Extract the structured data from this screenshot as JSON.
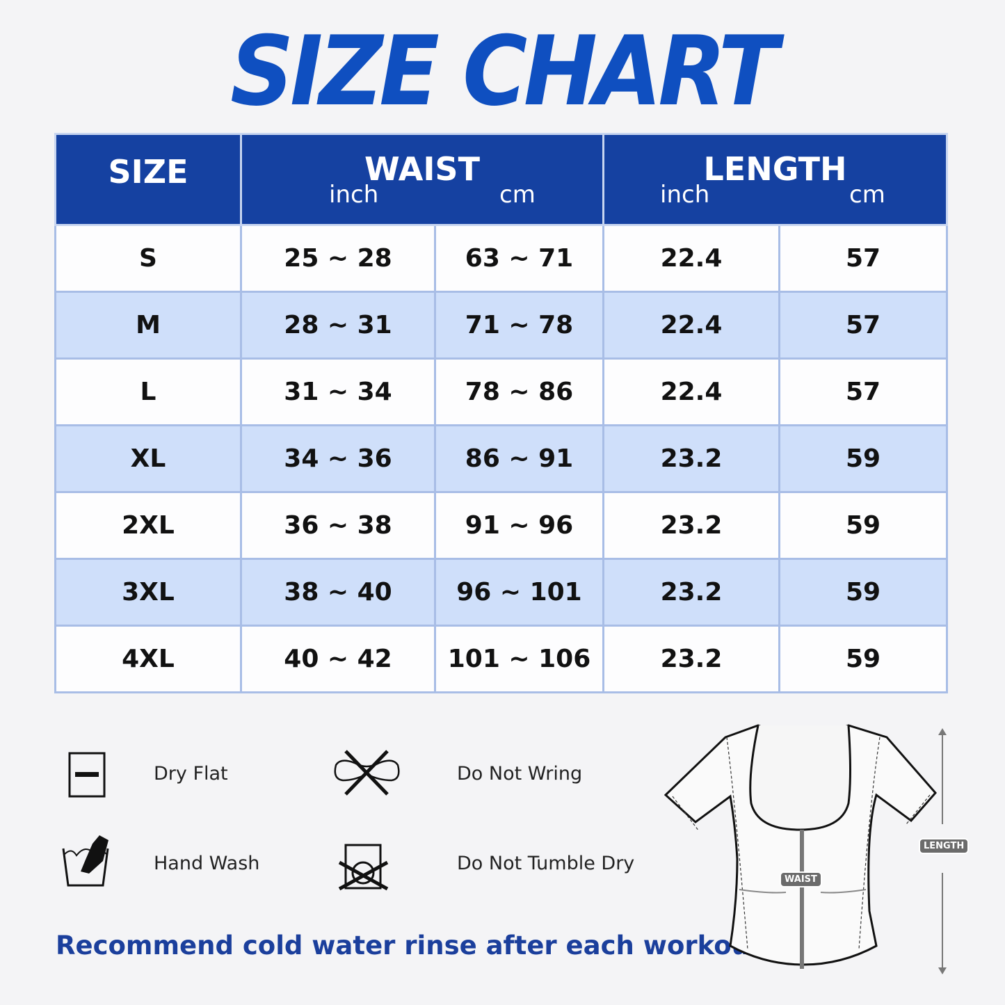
{
  "title": "SIZE CHART",
  "table": {
    "headers": {
      "size": "SIZE",
      "waist": "WAIST",
      "length": "LENGTH",
      "inch": "inch",
      "cm": "cm"
    },
    "rows": [
      {
        "size": "S",
        "waist_inch": "25 ~ 28",
        "waist_cm": "63 ~ 71",
        "length_inch": "22.4",
        "length_cm": "57"
      },
      {
        "size": "M",
        "waist_inch": "28 ~ 31",
        "waist_cm": "71 ~ 78",
        "length_inch": "22.4",
        "length_cm": "57"
      },
      {
        "size": "L",
        "waist_inch": "31 ~ 34",
        "waist_cm": "78 ~ 86",
        "length_inch": "22.4",
        "length_cm": "57"
      },
      {
        "size": "XL",
        "waist_inch": "34 ~ 36",
        "waist_cm": "86 ~ 91",
        "length_inch": "23.2",
        "length_cm": "59"
      },
      {
        "size": "2XL",
        "waist_inch": "36 ~ 38",
        "waist_cm": "91 ~ 96",
        "length_inch": "23.2",
        "length_cm": "59"
      },
      {
        "size": "3XL",
        "waist_inch": "38 ~ 40",
        "waist_cm": "96 ~ 101",
        "length_inch": "23.2",
        "length_cm": "59"
      },
      {
        "size": "4XL",
        "waist_inch": "40 ~ 42",
        "waist_cm": "101 ~ 106",
        "length_inch": "23.2",
        "length_cm": "59"
      }
    ]
  },
  "care": [
    {
      "label": "Dry Flat",
      "icon": "dry-flat-icon"
    },
    {
      "label": "Do Not Wring",
      "icon": "do-not-wring-icon"
    },
    {
      "label": "Hand Wash",
      "icon": "hand-wash-icon"
    },
    {
      "label": "Do Not Tumble Dry",
      "icon": "do-not-tumble-dry-icon"
    }
  ],
  "recommendation": "Recommend cold water rinse after each workout.",
  "diagram": {
    "waist_label": "WAIST",
    "length_label": "LENGTH"
  },
  "colors": {
    "header": "#1541a1",
    "title": "#0f4fc0",
    "stripe": "#cfdffa"
  }
}
